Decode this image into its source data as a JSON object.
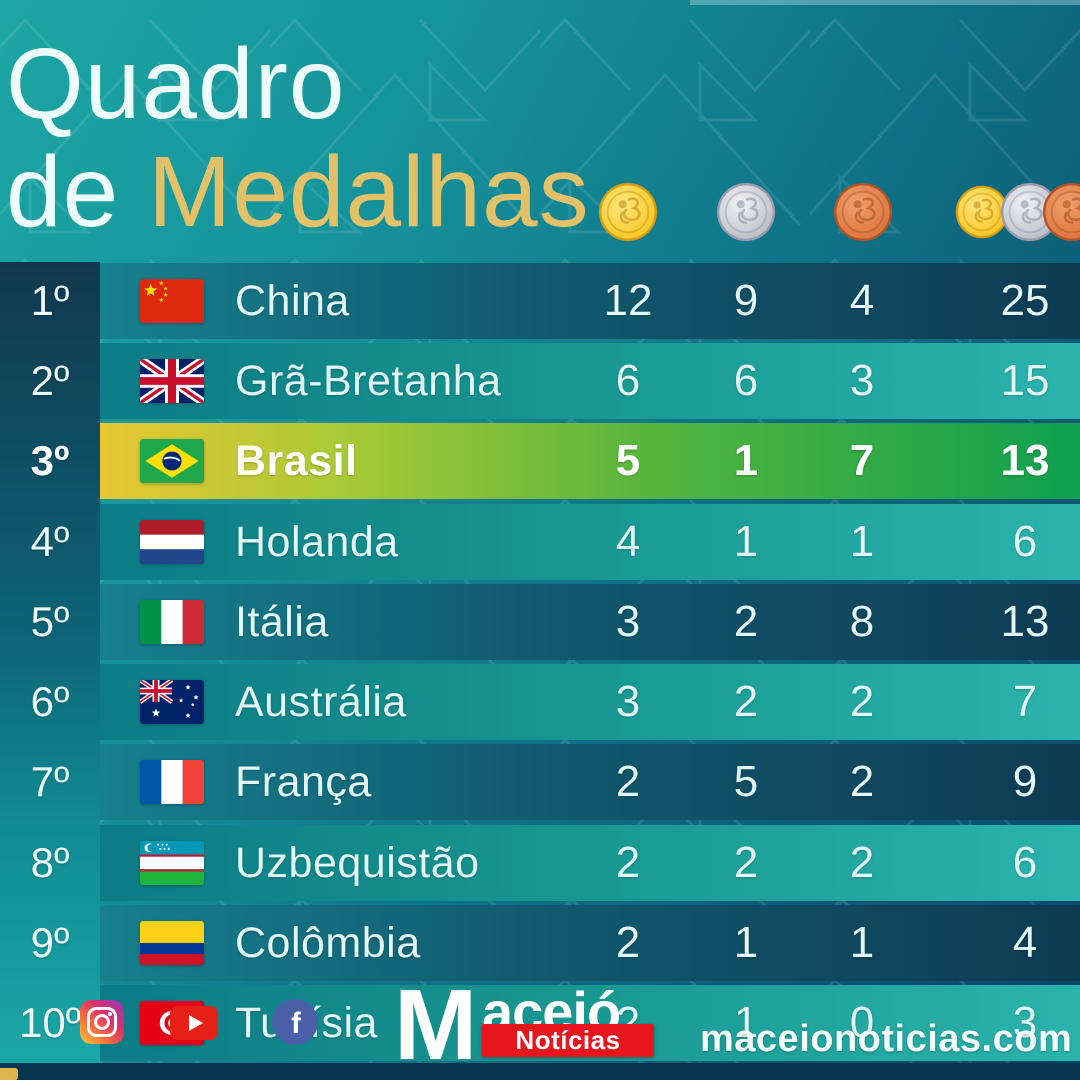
{
  "title": {
    "line1": "Quadro",
    "line2_plain": "de ",
    "line2_accent": "Medalhas"
  },
  "header": {
    "columns": [
      {
        "icon": "gold-medal-icon",
        "label": "ouro"
      },
      {
        "icon": "silver-medal-icon",
        "label": "prata"
      },
      {
        "icon": "bronze-medal-icon",
        "label": "bronze"
      },
      {
        "icon": "all-medals-icon",
        "label": "total"
      }
    ]
  },
  "rows": [
    {
      "rank": "1º",
      "country": "China",
      "flag": "cn",
      "gold": 12,
      "silver": 9,
      "bronze": 4,
      "total": 25,
      "variant": "dark",
      "highlight": false
    },
    {
      "rank": "2º",
      "country": "Grã-Bretanha",
      "flag": "gb",
      "gold": 6,
      "silver": 6,
      "bronze": 3,
      "total": 15,
      "variant": "light",
      "highlight": false
    },
    {
      "rank": "3º",
      "country": "Brasil",
      "flag": "br",
      "gold": 5,
      "silver": 1,
      "bronze": 7,
      "total": 13,
      "variant": "brasil",
      "highlight": true
    },
    {
      "rank": "4º",
      "country": "Holanda",
      "flag": "nl",
      "gold": 4,
      "silver": 1,
      "bronze": 1,
      "total": 6,
      "variant": "light",
      "highlight": false
    },
    {
      "rank": "5º",
      "country": "Itália",
      "flag": "it",
      "gold": 3,
      "silver": 2,
      "bronze": 8,
      "total": 13,
      "variant": "dark",
      "highlight": false
    },
    {
      "rank": "6º",
      "country": "Austrália",
      "flag": "au",
      "gold": 3,
      "silver": 2,
      "bronze": 2,
      "total": 7,
      "variant": "light",
      "highlight": false
    },
    {
      "rank": "7º",
      "country": "França",
      "flag": "fr",
      "gold": 2,
      "silver": 5,
      "bronze": 2,
      "total": 9,
      "variant": "dark",
      "highlight": false
    },
    {
      "rank": "8º",
      "country": "Uzbequistão",
      "flag": "uz",
      "gold": 2,
      "silver": 2,
      "bronze": 2,
      "total": 6,
      "variant": "light",
      "highlight": false
    },
    {
      "rank": "9º",
      "country": "Colômbia",
      "flag": "co",
      "gold": 2,
      "silver": 1,
      "bronze": 1,
      "total": 4,
      "variant": "dark",
      "highlight": false
    },
    {
      "rank": "10º",
      "country": "Tunísia",
      "flag": "tn",
      "gold": 2,
      "silver": 1,
      "bronze": 0,
      "total": 3,
      "variant": "light",
      "highlight": false
    }
  ],
  "footer": {
    "brand_initial": "M",
    "brand_name": "aceió",
    "brand_tag": "Notícias",
    "website": "maceionoticias.com",
    "social": [
      "instagram",
      "youtube",
      "facebook"
    ]
  },
  "colors": {
    "background_teal": "#17969c",
    "background_navy": "#0a4462",
    "title_accent_gold": "#e3c168",
    "gold_medal": "#fbc926",
    "silver_medal": "#c3c4cd",
    "bronze_medal": "#dd7342",
    "brasil_row_start": "#e9c733",
    "brasil_row_end": "#0fa04e",
    "brand_red": "#e8151d"
  },
  "chart_data": {
    "type": "table",
    "title": "Quadro de Medalhas",
    "columns": [
      "rank",
      "country",
      "gold",
      "silver",
      "bronze",
      "total"
    ],
    "categories": [
      "China",
      "Grã-Bretanha",
      "Brasil",
      "Holanda",
      "Itália",
      "Austrália",
      "França",
      "Uzbequistão",
      "Colômbia",
      "Tunísia"
    ],
    "series": [
      {
        "name": "gold",
        "values": [
          12,
          6,
          5,
          4,
          3,
          3,
          2,
          2,
          2,
          2
        ]
      },
      {
        "name": "silver",
        "values": [
          9,
          6,
          1,
          1,
          2,
          2,
          5,
          2,
          1,
          1
        ]
      },
      {
        "name": "bronze",
        "values": [
          4,
          3,
          7,
          1,
          8,
          2,
          2,
          2,
          1,
          0
        ]
      },
      {
        "name": "total",
        "values": [
          25,
          15,
          13,
          6,
          13,
          7,
          9,
          6,
          4,
          3
        ]
      }
    ],
    "highlighted_row": "Brasil"
  }
}
